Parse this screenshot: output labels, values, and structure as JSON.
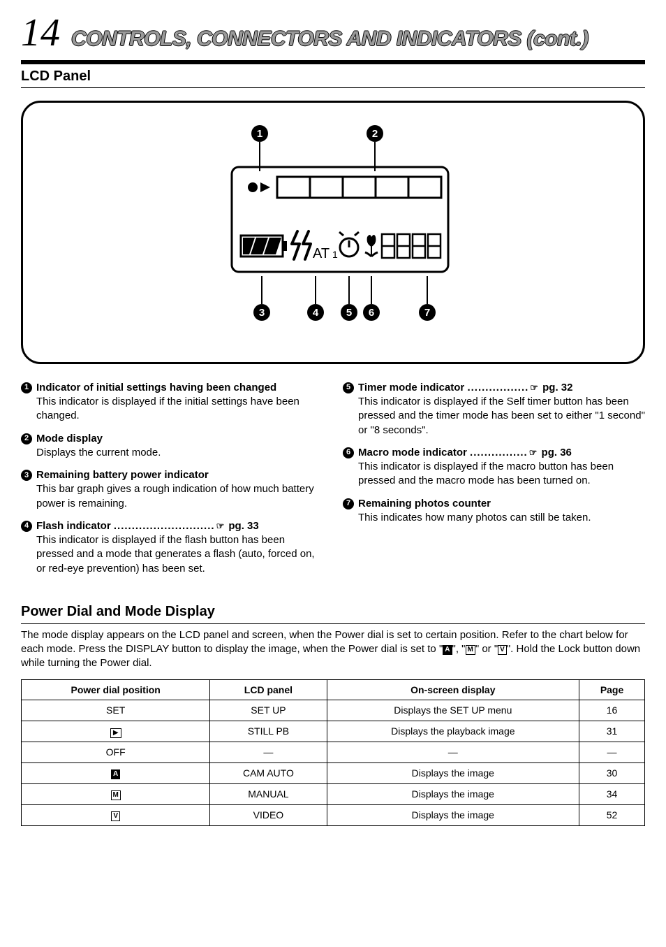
{
  "header": {
    "page_number": "14",
    "title": "CONTROLS, CONNECTORS AND INDICATORS (cont.)",
    "subheading": "LCD Panel"
  },
  "diagram": {
    "callouts": [
      "1",
      "2",
      "3",
      "4",
      "5",
      "6",
      "7"
    ],
    "text_at": "AT",
    "text_1": "1",
    "colors": {
      "stroke": "#000000",
      "fill_bg": "#ffffff",
      "bubble_fill": "#000000",
      "bubble_text": "#ffffff"
    }
  },
  "left_items": [
    {
      "num": "1",
      "label": "Indicator of initial settings having been changed",
      "body": "This indicator is displayed if the initial settings have been changed."
    },
    {
      "num": "2",
      "label": "Mode display",
      "body": "Displays the current mode."
    },
    {
      "num": "3",
      "label": "Remaining battery power indicator",
      "body": "This bar graph gives a rough indication of how much battery power is remaining."
    },
    {
      "num": "4",
      "label": "Flash indicator",
      "dots": "............................",
      "page_ref": "pg. 33",
      "body": "This indicator is displayed if the flash button has been pressed and a mode that generates a flash (auto, forced on, or red-eye prevention) has been set."
    }
  ],
  "right_items": [
    {
      "num": "5",
      "label": "Timer mode indicator",
      "dots": ".................",
      "page_ref": "pg. 32",
      "body": "This indicator is displayed if the Self timer button has been pressed and the timer mode has been set to either \"1 second\" or \"8 seconds\"."
    },
    {
      "num": "6",
      "label": "Macro mode indicator",
      "dots": "................",
      "page_ref": "pg. 36",
      "body": "This indicator is displayed if the macro button has been pressed and the macro mode has been turned on."
    },
    {
      "num": "7",
      "label": "Remaining photos counter",
      "body": "This indicates how many photos can still be taken."
    }
  ],
  "power_section": {
    "title": "Power Dial and Mode Display",
    "intro_pre": "The mode display appears on the LCD panel and screen, when the Power dial is set to certain position. Refer to the chart below for each mode. Press the DISPLAY button to display the image, when the Power dial is set to \"",
    "intro_mid1": "\", \"",
    "intro_mid2": "\" or \"",
    "intro_post": "\". Hold the Lock button down while turning the Power dial.",
    "glyph_a": "A",
    "glyph_m": "M",
    "glyph_v": "V"
  },
  "mode_table": {
    "headers": [
      "Power dial position",
      "LCD panel",
      "On-screen display",
      "Page"
    ],
    "rows": [
      {
        "pos_type": "text",
        "pos": "SET",
        "lcd": "SET UP",
        "osd": "Displays the SET UP menu",
        "page": "16"
      },
      {
        "pos_type": "play",
        "pos": "",
        "lcd": "STILL PB",
        "osd": "Displays the playback image",
        "page": "31"
      },
      {
        "pos_type": "text",
        "pos": "OFF",
        "lcd": "—",
        "osd": "—",
        "page": "—"
      },
      {
        "pos_type": "glyph",
        "pos": "A",
        "lcd": "CAM AUTO",
        "osd": "Displays the image",
        "page": "30"
      },
      {
        "pos_type": "glyph",
        "pos": "M",
        "lcd": "MANUAL",
        "osd": "Displays the image",
        "page": "34"
      },
      {
        "pos_type": "glyph",
        "pos": "V",
        "lcd": "VIDEO",
        "osd": "Displays the image",
        "page": "52"
      }
    ]
  }
}
